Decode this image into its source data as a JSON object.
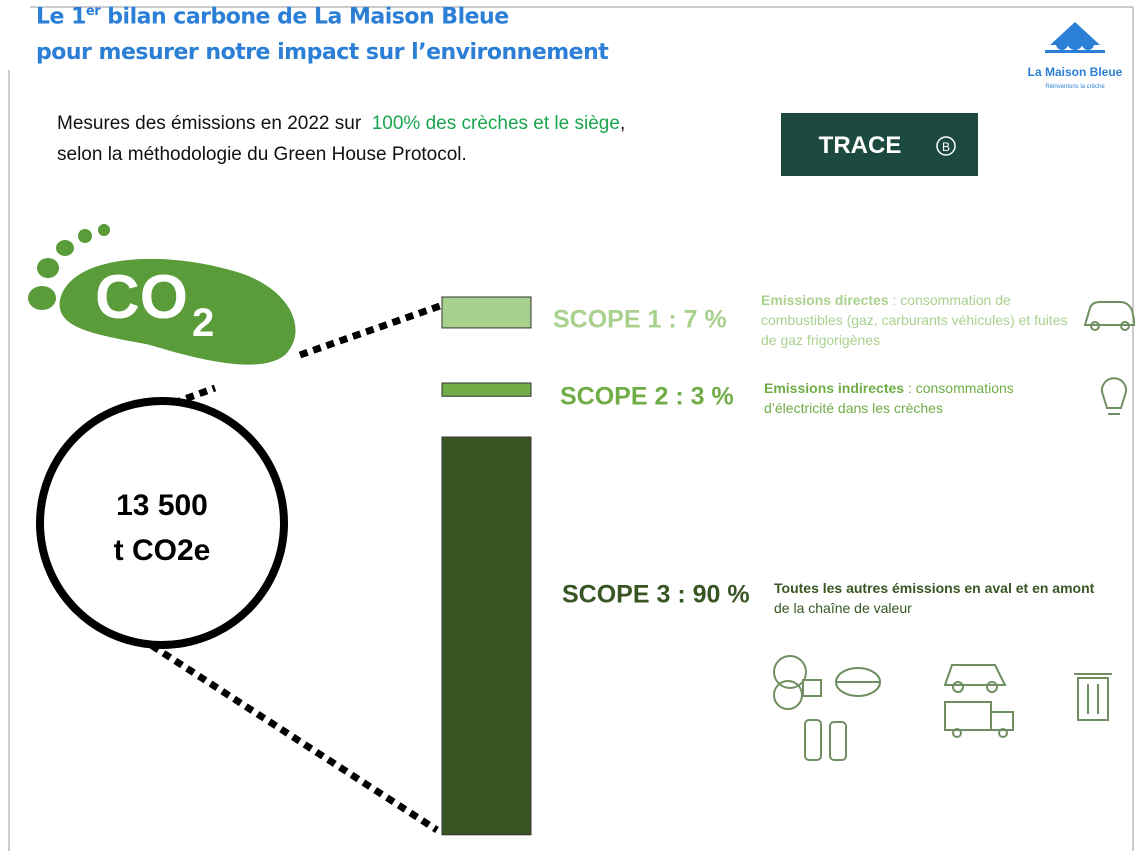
{
  "header": {
    "title_line1": {
      "before": "Le 1",
      "sup": "er",
      "after": " bilan carbone de La Maison Bleue"
    },
    "title_line2": "pour mesurer notre impact sur l’environnement",
    "logo_name": "La Maison Bleue",
    "logo_tagline": "Réinventons la crèche"
  },
  "intro": {
    "line1_start": "Mesures des émissions en 2022 sur",
    "highlight": "100% des crèches et le siège",
    "line1_end": ",",
    "line2": "selon la méthodologie du Green House Protocol."
  },
  "badge": {
    "name": "TRACE",
    "b_corp": "B"
  },
  "footprint": {
    "co": "CO",
    "sub": "2"
  },
  "total": {
    "line1": "13 500",
    "line2": "t CO2e"
  },
  "scopes": [
    {
      "label": "SCOPE 1 : 7 %",
      "value": 7,
      "color": "#a9d18e",
      "desc_bold": "Emissions directes",
      "desc": " : consommation de combustibles (gaz, carburants véhicules) et fuites de gaz frigorigènes"
    },
    {
      "label": "SCOPE 2 : 3 %",
      "value": 3,
      "color": "#70ad47",
      "desc_bold": "Emissions indirectes",
      "desc": " : consommations d’électricité dans les crèches"
    },
    {
      "label": "SCOPE 3 : 90 %",
      "value": 90,
      "color": "#375623",
      "desc_bold": "Toutes les autres émissions en aval et en amont",
      "desc": " de la chaîne de valeur"
    }
  ]
}
